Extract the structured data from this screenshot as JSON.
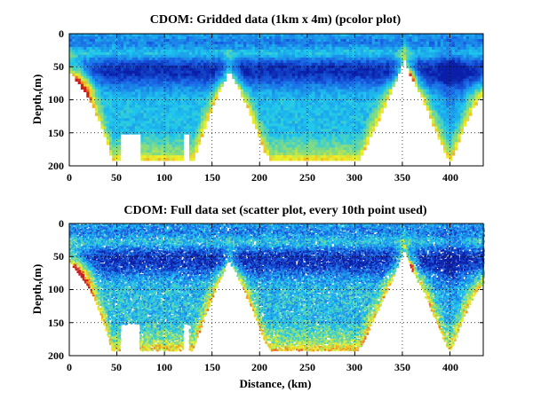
{
  "figure": {
    "xlabel": "Distance, (km)",
    "colors": {
      "deep_blue": "#0a1ea8",
      "mid_blue": "#1a64e6",
      "cyan": "#1ec8ee",
      "green": "#9ae06a",
      "yellow": "#f0f028",
      "orange": "#f08a1e",
      "red": "#c81e1e"
    }
  },
  "chart_data": [
    {
      "type": "heatmap",
      "variant": "pcolor",
      "title": "CDOM: Gridded data (1km x 4m) (pcolor plot)",
      "ylabel": "Depth,(m)",
      "xlabel": "",
      "xlim": [
        0,
        435
      ],
      "ylim": [
        200,
        0
      ],
      "xticks": [
        0,
        50,
        100,
        150,
        200,
        250,
        300,
        350,
        400
      ],
      "yticks": [
        0,
        50,
        100,
        150,
        200
      ],
      "grid": "dotted",
      "bottom_depth_profile": [
        [
          0,
          55
        ],
        [
          10,
          75
        ],
        [
          20,
          95
        ],
        [
          30,
          125
        ],
        [
          40,
          165
        ],
        [
          45,
          192
        ],
        [
          130,
          192
        ],
        [
          140,
          150
        ],
        [
          155,
          95
        ],
        [
          168,
          55
        ],
        [
          175,
          72
        ],
        [
          190,
          120
        ],
        [
          205,
          175
        ],
        [
          212,
          192
        ],
        [
          305,
          192
        ],
        [
          315,
          160
        ],
        [
          330,
          115
        ],
        [
          345,
          65
        ],
        [
          352,
          38
        ],
        [
          358,
          62
        ],
        [
          372,
          100
        ],
        [
          385,
          145
        ],
        [
          395,
          180
        ],
        [
          400,
          192
        ],
        [
          406,
          175
        ],
        [
          415,
          140
        ],
        [
          425,
          110
        ],
        [
          435,
          90
        ]
      ],
      "data_gaps": [
        [
          54,
          192,
          20,
          192
        ],
        [
          120,
          192,
          125,
          160
        ]
      ],
      "high_value_features": [
        "Minimum (deep blue) CDOM in a layer at about 40-75 m depth",
        "Maximum (red/orange) CDOM near bottom slope at 0-25 km, 50-110 m",
        "Maximum (red/orange) CDOM near bottom at ~355-360 km, 55-75 m",
        "Higher (yellow) CDOM along the bottom edge of each section"
      ]
    },
    {
      "type": "scatter",
      "variant": "colored scatter",
      "title": "CDOM: Full data set (scatter plot, every 10th point used)",
      "ylabel": "Depth,(m)",
      "xlabel": "Distance, (km)",
      "xlim": [
        0,
        435
      ],
      "ylim": [
        200,
        0
      ],
      "xticks": [
        0,
        50,
        100,
        150,
        200,
        250,
        300,
        350,
        400
      ],
      "yticks": [
        0,
        50,
        100,
        150,
        200
      ],
      "grid": "dotted",
      "bottom_depth_profile": [
        [
          0,
          55
        ],
        [
          10,
          75
        ],
        [
          20,
          95
        ],
        [
          30,
          125
        ],
        [
          40,
          165
        ],
        [
          45,
          192
        ],
        [
          130,
          192
        ],
        [
          140,
          150
        ],
        [
          155,
          95
        ],
        [
          168,
          55
        ],
        [
          175,
          72
        ],
        [
          190,
          120
        ],
        [
          205,
          175
        ],
        [
          212,
          192
        ],
        [
          305,
          192
        ],
        [
          315,
          160
        ],
        [
          330,
          115
        ],
        [
          345,
          65
        ],
        [
          352,
          38
        ],
        [
          358,
          62
        ],
        [
          372,
          100
        ],
        [
          385,
          145
        ],
        [
          395,
          180
        ],
        [
          400,
          192
        ],
        [
          406,
          175
        ],
        [
          415,
          140
        ],
        [
          425,
          110
        ],
        [
          435,
          90
        ]
      ],
      "data_gaps": [
        [
          54,
          192,
          20,
          192
        ],
        [
          120,
          192,
          125,
          160
        ]
      ],
      "high_value_features": [
        "Minimum (deep blue) CDOM in a layer at about 40-75 m depth",
        "Maximum (red/orange) CDOM near bottom slope at 0-25 km, 50-110 m",
        "Maximum (red/orange) CDOM near bottom at ~355-360 km, 55-75 m",
        "Higher (yellow) CDOM along the bottom edge of each section"
      ]
    }
  ]
}
